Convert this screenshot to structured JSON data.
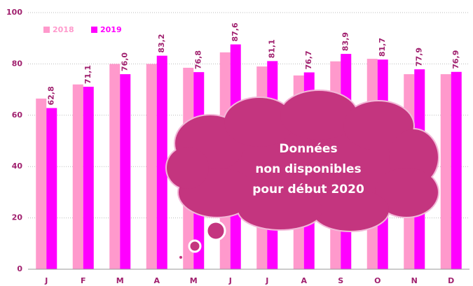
{
  "chart_data": {
    "type": "bar",
    "categories": [
      "J",
      "F",
      "M",
      "A",
      "M",
      "J",
      "J",
      "A",
      "S",
      "O",
      "N",
      "D"
    ],
    "series": [
      {
        "name": "2018",
        "color": "#ff99cc",
        "values": [
          66.5,
          72,
          80,
          80,
          78.5,
          84.5,
          79,
          75.5,
          81,
          82,
          76,
          76
        ]
      },
      {
        "name": "2019",
        "color": "#ff00ff",
        "values": [
          62.8,
          71.1,
          76.0,
          83.2,
          76.8,
          87.6,
          81.1,
          76.7,
          83.9,
          81.7,
          77.9,
          76.9
        ],
        "value_labels": [
          "62,8",
          "71,1",
          "76,0",
          "83,2",
          "76,8",
          "87,6",
          "81,1",
          "76,7",
          "83,9",
          "81,7",
          "77,9",
          "76,9"
        ]
      }
    ],
    "ylim": [
      0,
      100
    ],
    "yticks": [
      0,
      20,
      40,
      60,
      80,
      100
    ],
    "grid": true,
    "legend": "top-left",
    "annotation": [
      "Données",
      "non disponibles",
      "pour début 2020"
    ]
  }
}
